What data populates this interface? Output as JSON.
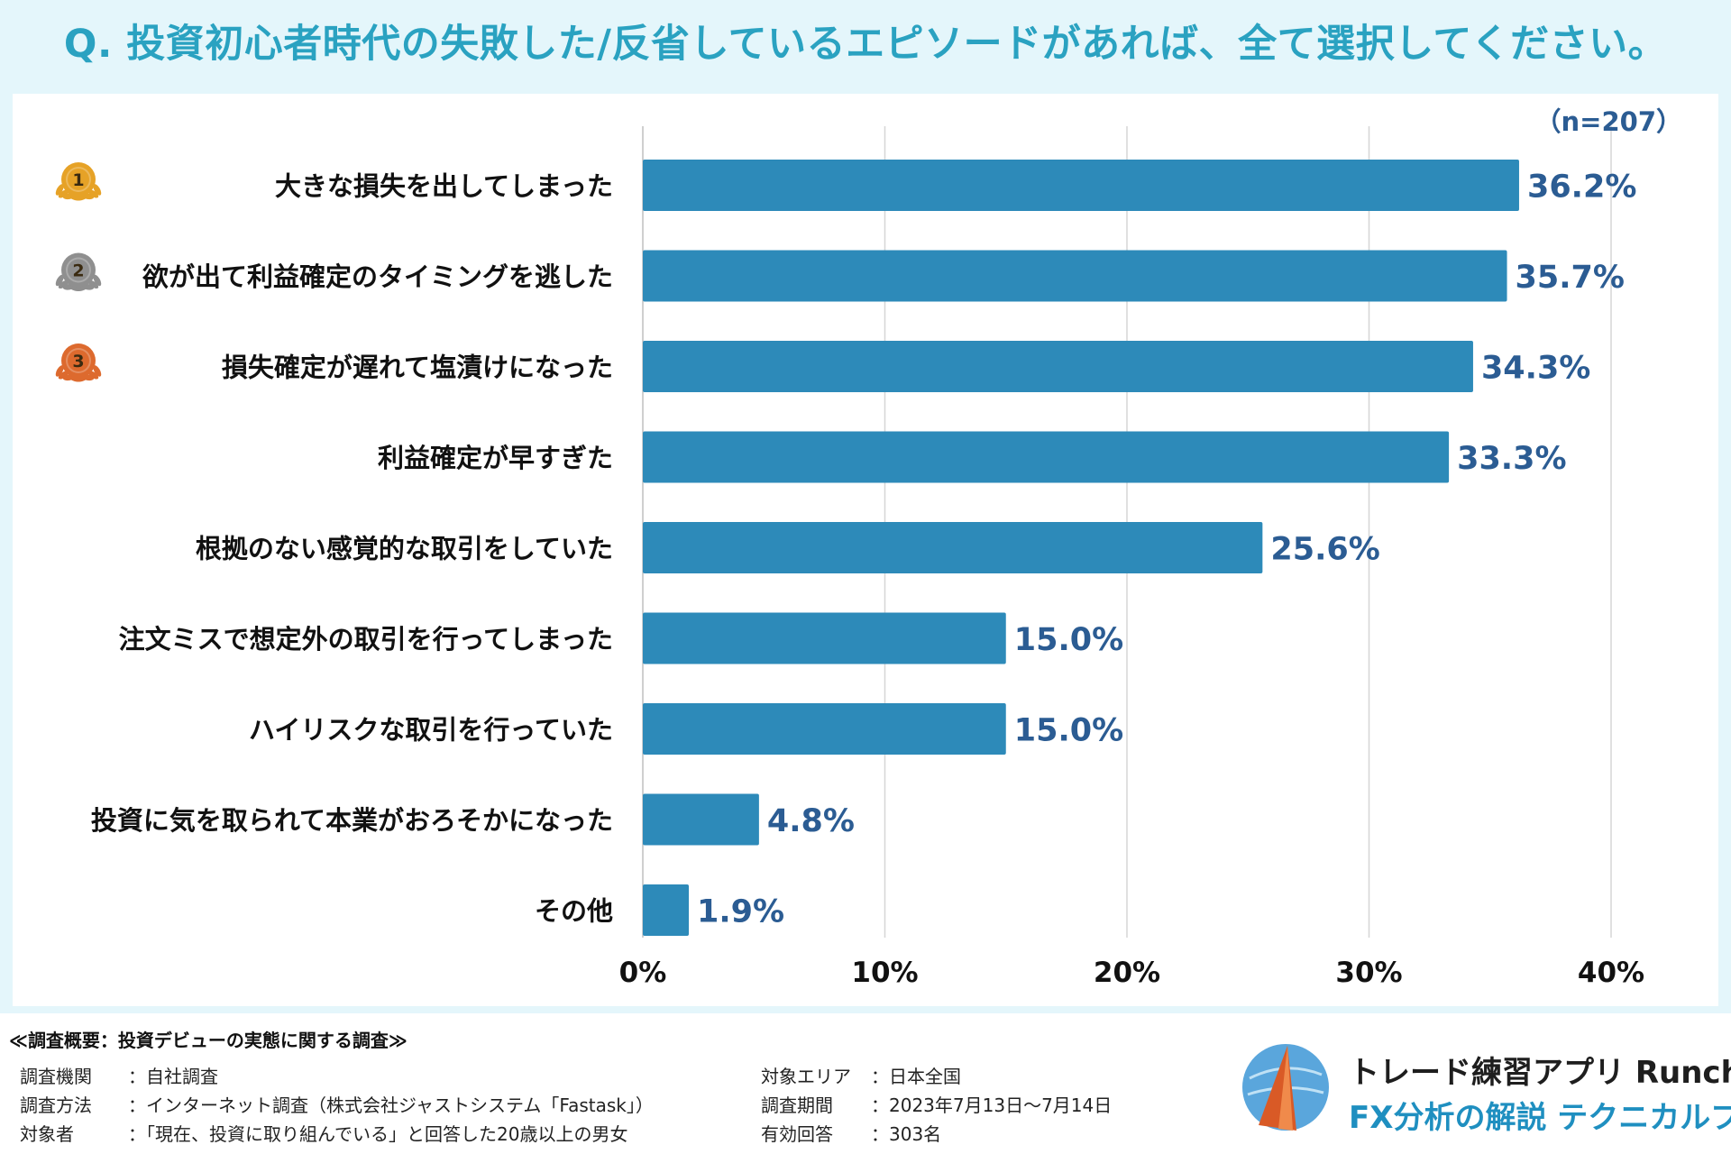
{
  "title": "Q. 投資初心者時代の失敗した/反省しているエピソードがあれば、全て選択してください。",
  "colors": {
    "bar": "#2d8ab9",
    "value_label": "#2b5c93",
    "title": "#2aa2c1",
    "gold": "#e6a227",
    "silver": "#8f8f8f",
    "bronze": "#dd6a2e"
  },
  "chart_data": {
    "type": "bar",
    "orientation": "horizontal",
    "sample_note": "（n=207）",
    "categories": [
      "大きな損失を出してしまった",
      "欲が出て利益確定のタイミングを逃した",
      "損失確定が遅れて塩漬けになった",
      "利益確定が早すぎた",
      "根拠のない感覚的な取引をしていた",
      "注文ミスで想定外の取引を行ってしまった",
      "ハイリスクな取引を行っていた",
      "投資に気を取られて本業がおろそかになった",
      "その他"
    ],
    "values": [
      36.2,
      35.7,
      34.3,
      33.3,
      25.6,
      15.0,
      15.0,
      4.8,
      1.9
    ],
    "value_labels": [
      "36.2%",
      "35.7%",
      "34.3%",
      "33.3%",
      "25.6%",
      "15.0%",
      "15.0%",
      "4.8%",
      "1.9%"
    ],
    "xlim": [
      0,
      40
    ],
    "x_ticks": [
      0,
      10,
      20,
      30,
      40
    ],
    "x_tick_labels": [
      "0%",
      "10%",
      "20%",
      "30%",
      "40%"
    ],
    "grid": true,
    "rank_medals": [
      {
        "rank": "1",
        "icon": "gold-medal-icon"
      },
      {
        "rank": "2",
        "icon": "silver-medal-icon"
      },
      {
        "rank": "3",
        "icon": "bronze-medal-icon"
      }
    ]
  },
  "survey": {
    "heading": "≪調査概要：投資デビューの実態に関する調査≫",
    "left": [
      {
        "label": "調査機関",
        "value": "：自社調査"
      },
      {
        "label": "調査方法",
        "value": "：インターネット調査（株式会社ジャストシステム「Fastask」）"
      },
      {
        "label": "対象者",
        "value": "：「現在、投資に取り組んでいる」と回答した20歳以上の男女"
      }
    ],
    "right": [
      {
        "label": "対象エリア",
        "value": "：日本全国"
      },
      {
        "label": "調査期間",
        "value": "：2023年7月13日～7月14日"
      },
      {
        "label": "有効回答",
        "value": "：303名"
      }
    ]
  },
  "brand": {
    "name": "トレード練習アプリ  Runcha",
    "subtitle": "FX分析の解説  テクニカルブック",
    "logo_icon": "runcha-logo-icon"
  }
}
